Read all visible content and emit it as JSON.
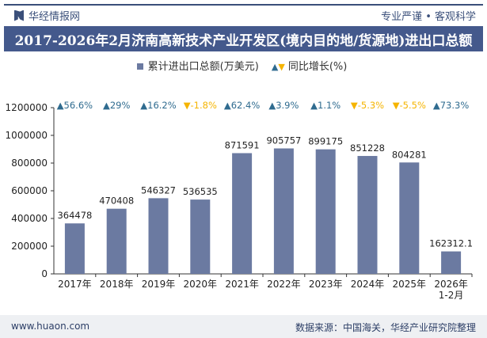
{
  "header": {
    "brand": "华经情报网",
    "slogan": "专业严谨 • 客观科学"
  },
  "title": "2017-2026年2月济南高新技术产业开发区(境内目的地/货源地)进出口总额",
  "legend": {
    "series": "累计进出口总额(万美元)",
    "growth": "同比增长(%)"
  },
  "footer": {
    "website": "www.huaon.com",
    "source": "数据来源：中国海关，华经产业研究院整理"
  },
  "colors": {
    "bar": "#6b7aa1",
    "up": "#2f6b8f",
    "down": "#f5b400",
    "title_bg": "#44598c"
  },
  "chart_data": {
    "type": "bar",
    "categories": [
      "2017年",
      "2018年",
      "2019年",
      "2020年",
      "2021年",
      "2022年",
      "2023年",
      "2024年",
      "2025年",
      "2026年\n1-2月"
    ],
    "series": [
      {
        "name": "累计进出口总额(万美元)",
        "values": [
          364478,
          470408,
          546327,
          536535,
          871591,
          905757,
          899175,
          851228,
          804281,
          162312.1
        ]
      }
    ],
    "value_labels": [
      "364478",
      "470408",
      "546327",
      "536535",
      "871591",
      "905757",
      "899175",
      "851228",
      "804281",
      "162312.1"
    ],
    "growth": [
      56.6,
      29,
      16.2,
      -1.8,
      62.4,
      3.9,
      1.1,
      -5.3,
      -5.5,
      73.3
    ],
    "growth_labels": [
      "56.6%",
      "29%",
      "16.2%",
      "-1.8%",
      "62.4%",
      "3.9%",
      "1.1%",
      "-5.3%",
      "-5.5%",
      "73.3%"
    ],
    "ylim": [
      0,
      1200000
    ],
    "yticks": [
      "0",
      "200000",
      "400000",
      "600000",
      "800000",
      "1000000",
      "1200000"
    ]
  }
}
